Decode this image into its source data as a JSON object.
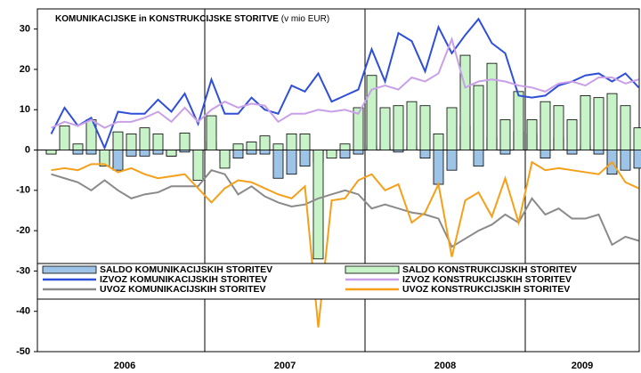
{
  "chart_data": {
    "type": "combo",
    "title": "KOMUNIKACIJSKE in KONSTRUKCIJSKE STORITVE",
    "subtitle": "(v mio EUR)",
    "years": [
      "2006",
      "2007",
      "2008",
      "2009"
    ],
    "ylim": [
      -50,
      35
    ],
    "yticks": [
      30,
      20,
      10,
      0,
      -10,
      -20,
      -30,
      -40,
      -50
    ],
    "series": [
      {
        "name": "SALDO KOMUNIKACIJSKIH STORITEV",
        "kind": "bar",
        "color": "#9dc3e6",
        "values": [
          -1,
          0,
          -1,
          -1,
          -3,
          -5,
          -1.5,
          -1.5,
          -1,
          -1.5,
          -0.5,
          -0.5,
          2,
          -3,
          -2,
          -1,
          -1,
          -7,
          -6,
          -4,
          -3,
          -1,
          -2,
          -1,
          1,
          1,
          -0.5,
          1,
          -2,
          -8.5,
          -5,
          6,
          -4,
          3,
          -1,
          4.5,
          4,
          -2,
          3,
          -1,
          1,
          -1,
          -6,
          -5,
          -4.5
        ]
      },
      {
        "name": "SALDO KONSTRUKCIJSKIH STORITEV",
        "kind": "bar",
        "color": "#c8f2c8",
        "values": [
          -1,
          6,
          1.5,
          7.5,
          -4,
          4.5,
          4,
          5.5,
          4,
          -1.5,
          4.2,
          -7.5,
          8.5,
          -4.5,
          1.5,
          2,
          3.5,
          1.5,
          4,
          4,
          -27,
          -2,
          1.5,
          10.5,
          18.5,
          10.5,
          11,
          12,
          11,
          4,
          10.5,
          23.5,
          16,
          21.5,
          7.5,
          14.5,
          7.5,
          12,
          11,
          7.5,
          13.5,
          13,
          14,
          11,
          5.5
        ]
      },
      {
        "name": "IZVOZ KOMUNIKACIJSKIH STORITEV",
        "kind": "line",
        "color": "#2f4fd8",
        "values": [
          4,
          10.5,
          6,
          8,
          0.5,
          9.5,
          9,
          9,
          12.5,
          9.5,
          14,
          6.5,
          17.5,
          9,
          9,
          13,
          10,
          9,
          16,
          14.5,
          19,
          12,
          13.5,
          15,
          25,
          17,
          29,
          27,
          19.5,
          30.5,
          24,
          28.5,
          32.5,
          26.5,
          24,
          13.5,
          13,
          13.5,
          16,
          17,
          18.5,
          19,
          17,
          19,
          15.5
        ]
      },
      {
        "name": "IZVOZ KONSTRUKCIJSKIH STORITEV",
        "kind": "line",
        "color": "#c9a0e8",
        "values": [
          5.5,
          7,
          6,
          7.5,
          5.5,
          7,
          7,
          8,
          9.5,
          7,
          10.5,
          7,
          10,
          12,
          10.5,
          11.5,
          11,
          7,
          9,
          9,
          10,
          9.5,
          10,
          9,
          15,
          16,
          15,
          18,
          17,
          19,
          27.5,
          15.5,
          17,
          17.5,
          17,
          16,
          15.5,
          14.5,
          16.5,
          17,
          16,
          18,
          18,
          16.5,
          17.5
        ]
      },
      {
        "name": "UVOZ KOMUNIKACIJSKIH STORITEV",
        "kind": "line",
        "color": "#8a8a8a",
        "values": [
          -6,
          -7,
          -8,
          -10,
          -7.5,
          -10,
          -12,
          -11,
          -10.5,
          -9,
          -9,
          -9,
          -5,
          -6,
          -11,
          -9,
          -11.5,
          -13,
          -14,
          -13.5,
          -12,
          -11,
          -10,
          -11,
          -14.5,
          -13.5,
          -14.5,
          -15.5,
          -16,
          -17,
          -24,
          -22,
          -20,
          -18.5,
          -16,
          -18,
          -12,
          -16,
          -14.5,
          -17,
          -17,
          -16,
          -23.5,
          -21.5,
          -22.5
        ]
      },
      {
        "name": "UVOZ KONSTRUKCIJSKIH STORITEV",
        "kind": "line",
        "color": "#f5a01a",
        "values": [
          -5,
          -4.5,
          -5,
          -3.5,
          -3.5,
          -5.5,
          -4.5,
          -6,
          -7,
          -6.5,
          -6,
          -9.5,
          -13,
          -9.5,
          -7.5,
          -8,
          -9.5,
          -11,
          -12,
          -9,
          -44,
          -12.5,
          -12,
          -7.5,
          -6,
          -10,
          -8.5,
          -18,
          -15.5,
          -8.5,
          -26.5,
          -12.5,
          -10.5,
          -16.5,
          -7,
          -18,
          -3,
          -5,
          -4.5,
          -5,
          -5.5,
          -6,
          -3,
          -8,
          -9.5
        ]
      }
    ]
  }
}
